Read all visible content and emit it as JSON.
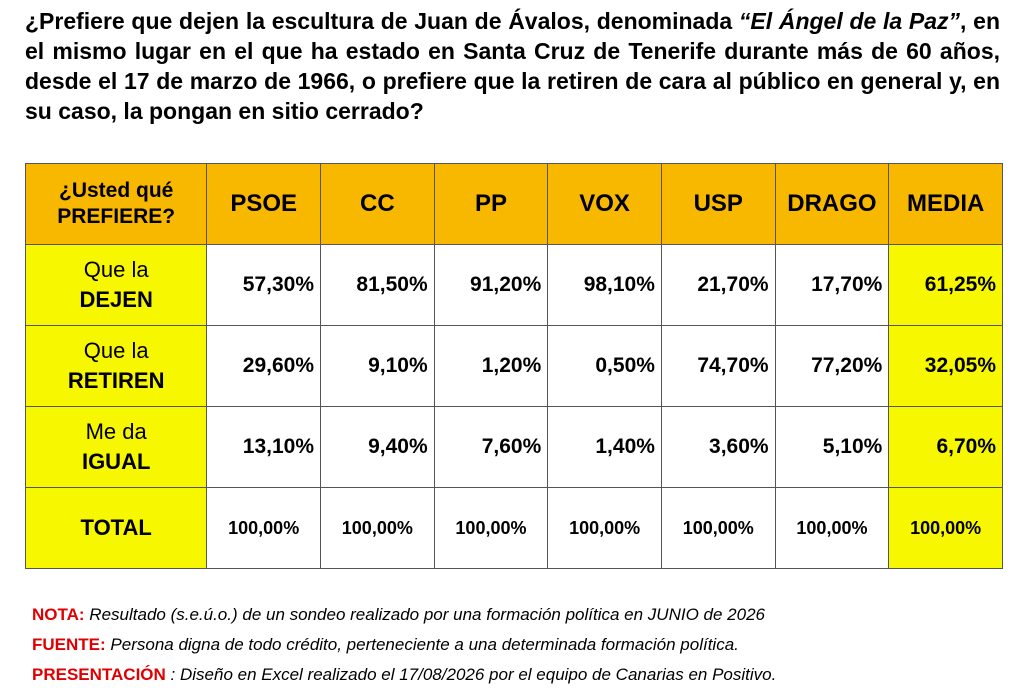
{
  "question": {
    "before": "¿Prefiere que dejen la escultura de Juan de Ávalos, denominada ",
    "italic": "“El Ángel de la Paz”",
    "after": ", en el mismo lugar en el que ha estado en Santa Cruz de Tenerife durante más de 60 años, desde el 17 de marzo de 1966, o prefiere que la retiren de cara al público en general y, en su caso, la pongan en sitio cerrado?"
  },
  "table": {
    "header": [
      "¿Usted qué PREFIERE?",
      "PSOE",
      "CC",
      "PP",
      "VOX",
      "USP",
      "DRAGO",
      "MEDIA"
    ],
    "rows": [
      {
        "label_top": "Que la",
        "label_bottom": "DEJEN",
        "cells": [
          "57,30%",
          "81,50%",
          "91,20%",
          "98,10%",
          "21,70%",
          "17,70%",
          "61,25%"
        ]
      },
      {
        "label_top": "Que la",
        "label_bottom": "RETIREN",
        "cells": [
          "29,60%",
          "9,10%",
          "1,20%",
          "0,50%",
          "74,70%",
          "77,20%",
          "32,05%"
        ]
      },
      {
        "label_top": "Me da",
        "label_bottom": "IGUAL",
        "cells": [
          "13,10%",
          "9,40%",
          "7,60%",
          "1,40%",
          "3,60%",
          "5,10%",
          "6,70%"
        ]
      },
      {
        "label_bottom": "TOTAL",
        "cells": [
          "100,00%",
          "100,00%",
          "100,00%",
          "100,00%",
          "100,00%",
          "100,00%",
          "100,00%"
        ]
      }
    ]
  },
  "notes": [
    {
      "label": "NOTA:",
      "text": "Resultado (s.e.ú.o.) de un sondeo realizado por una formación política en JUNIO de 2026"
    },
    {
      "label": "FUENTE:",
      "text": "Persona digna de todo crédito, perteneciente a una determinada formación política."
    },
    {
      "label": "PRESENTACIÓN",
      "text": ": Diseño en Excel realizado el 17/08/2026 por el equipo de Canarias en Positivo."
    }
  ]
}
